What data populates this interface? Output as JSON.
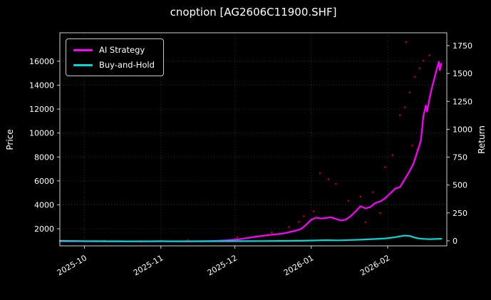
{
  "title": "cnoption [AG2606C11900.SHF]",
  "chart_data": {
    "type": "line",
    "title": "cnoption [AG2606C11900.SHF]",
    "xlabel": "",
    "ylabel_left": "Price",
    "ylabel_right": "Return",
    "background": "#000000",
    "text_color": "#ffffff",
    "grid": true,
    "grid_color": "rgba(255,255,255,0.22)",
    "spine_color": "#d0d0d0",
    "legend_position": "upper left",
    "x_domain_days": [
      0,
      157
    ],
    "x_ticks": [
      {
        "day": 10,
        "label": "2025-10"
      },
      {
        "day": 41,
        "label": "2025-11"
      },
      {
        "day": 71,
        "label": "2025-12"
      },
      {
        "day": 102,
        "label": "2026-01"
      },
      {
        "day": 133,
        "label": "2026-02"
      }
    ],
    "left_axis": {
      "label": "Price",
      "range": [
        570,
        18380
      ],
      "ticks": [
        2000,
        4000,
        6000,
        8000,
        10000,
        12000,
        14000,
        16000
      ]
    },
    "right_axis": {
      "label": "Return",
      "range": [
        -45,
        1865
      ],
      "ticks": [
        0,
        250,
        500,
        750,
        1000,
        1250,
        1500,
        1750
      ]
    },
    "series": [
      {
        "name": "AI Strategy",
        "color": "#ff00ff",
        "axis": "left",
        "points": [
          [
            0,
            960
          ],
          [
            4,
            950
          ],
          [
            8,
            958
          ],
          [
            12,
            952
          ],
          [
            16,
            960
          ],
          [
            20,
            950
          ],
          [
            24,
            956
          ],
          [
            28,
            948
          ],
          [
            32,
            955
          ],
          [
            36,
            950
          ],
          [
            41,
            958
          ],
          [
            45,
            950
          ],
          [
            49,
            960
          ],
          [
            53,
            955
          ],
          [
            57,
            965
          ],
          [
            61,
            975
          ],
          [
            64,
            990
          ],
          [
            67,
            1020
          ],
          [
            70,
            1070
          ],
          [
            73,
            1130
          ],
          [
            76,
            1220
          ],
          [
            79,
            1320
          ],
          [
            82,
            1400
          ],
          [
            85,
            1480
          ],
          [
            88,
            1540
          ],
          [
            91,
            1620
          ],
          [
            94,
            1760
          ],
          [
            96,
            1850
          ],
          [
            98,
            2000
          ],
          [
            100,
            2350
          ],
          [
            102,
            2750
          ],
          [
            104,
            2930
          ],
          [
            106,
            2850
          ],
          [
            108,
            2900
          ],
          [
            110,
            2960
          ],
          [
            112,
            2820
          ],
          [
            114,
            2690
          ],
          [
            116,
            2760
          ],
          [
            118,
            3050
          ],
          [
            120,
            3450
          ],
          [
            122,
            3880
          ],
          [
            124,
            3700
          ],
          [
            126,
            3820
          ],
          [
            128,
            4150
          ],
          [
            130,
            4280
          ],
          [
            132,
            4550
          ],
          [
            134,
            4950
          ],
          [
            136,
            5350
          ],
          [
            138,
            5480
          ],
          [
            140,
            6150
          ],
          [
            142,
            6850
          ],
          [
            143.5,
            7450
          ],
          [
            144.5,
            8100
          ],
          [
            145.5,
            8700
          ],
          [
            146.5,
            9400
          ],
          [
            147.5,
            11400
          ],
          [
            148.5,
            12300
          ],
          [
            149,
            11800
          ],
          [
            150,
            12900
          ],
          [
            151,
            13800
          ],
          [
            152,
            14600
          ],
          [
            153,
            15400
          ],
          [
            153.8,
            15950
          ],
          [
            154.2,
            15250
          ],
          [
            154.8,
            15800
          ]
        ]
      },
      {
        "name": "Buy-and-Hold",
        "color": "#00d8d8",
        "axis": "left",
        "points": [
          [
            0,
            985
          ],
          [
            8,
            970
          ],
          [
            16,
            960
          ],
          [
            24,
            952
          ],
          [
            32,
            948
          ],
          [
            41,
            955
          ],
          [
            49,
            945
          ],
          [
            57,
            950
          ],
          [
            65,
            958
          ],
          [
            73,
            965
          ],
          [
            81,
            972
          ],
          [
            89,
            980
          ],
          [
            97,
            995
          ],
          [
            103,
            1015
          ],
          [
            108,
            1045
          ],
          [
            113,
            1030
          ],
          [
            118,
            1060
          ],
          [
            123,
            1095
          ],
          [
            128,
            1140
          ],
          [
            132,
            1190
          ],
          [
            135,
            1260
          ],
          [
            138,
            1360
          ],
          [
            140,
            1430
          ],
          [
            142,
            1390
          ],
          [
            144,
            1260
          ],
          [
            146,
            1180
          ],
          [
            148,
            1150
          ],
          [
            150,
            1125
          ],
          [
            152,
            1140
          ],
          [
            154.8,
            1160
          ]
        ]
      }
    ],
    "scatter": {
      "name": "trade-markers",
      "color": "#b30000",
      "radius": 1.3,
      "points": [
        [
          18,
          1010
        ],
        [
          33,
          905
        ],
        [
          52,
          1060
        ],
        [
          72,
          1290
        ],
        [
          86,
          1690
        ],
        [
          93,
          2150
        ],
        [
          97,
          2580
        ],
        [
          99,
          3050
        ],
        [
          103,
          3450
        ],
        [
          105.6,
          6650
        ],
        [
          109,
          6150
        ],
        [
          112,
          5750
        ],
        [
          117,
          4350
        ],
        [
          122,
          4680
        ],
        [
          124,
          2550
        ],
        [
          127,
          5050
        ],
        [
          130,
          3300
        ],
        [
          132,
          7150
        ],
        [
          135,
          8150
        ],
        [
          138,
          11500
        ],
        [
          140,
          12150
        ],
        [
          140.5,
          17600
        ],
        [
          142,
          13400
        ],
        [
          143,
          8950
        ],
        [
          144,
          14700
        ],
        [
          145,
          8650
        ],
        [
          146,
          15400
        ],
        [
          147.5,
          16050
        ],
        [
          150,
          16500
        ]
      ]
    }
  }
}
